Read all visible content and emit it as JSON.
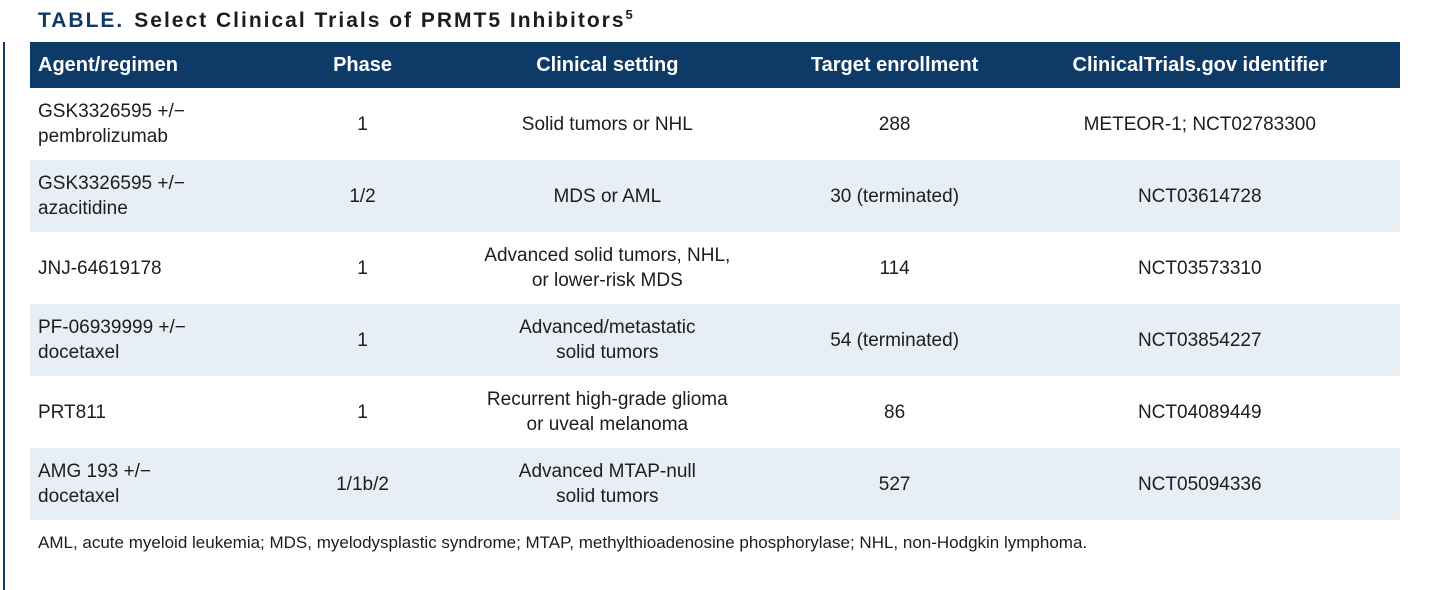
{
  "title": {
    "label": "TABLE.",
    "text": "Select Clinical Trials of PRMT5 Inhibitors",
    "reference": "5"
  },
  "table": {
    "columns": [
      {
        "label": "Agent/regimen"
      },
      {
        "label": "Phase"
      },
      {
        "label": "Clinical setting"
      },
      {
        "label": "Target enrollment"
      },
      {
        "label": "ClinicalTrials.gov identifier"
      }
    ],
    "rows": [
      {
        "agent": [
          "GSK3326595 +/−",
          "pembrolizumab"
        ],
        "phase": "1",
        "setting": [
          "Solid tumors or NHL"
        ],
        "enrollment": "288",
        "identifier": "METEOR-1; NCT02783300"
      },
      {
        "agent": [
          "GSK3326595 +/−",
          "azacitidine"
        ],
        "phase": "1/2",
        "setting": [
          "MDS or AML"
        ],
        "enrollment": "30 (terminated)",
        "identifier": "NCT03614728"
      },
      {
        "agent": [
          "JNJ-64619178"
        ],
        "phase": "1",
        "setting": [
          "Advanced solid tumors, NHL,",
          "or lower-risk MDS"
        ],
        "enrollment": "114",
        "identifier": "NCT03573310"
      },
      {
        "agent": [
          "PF-06939999 +/−",
          "docetaxel"
        ],
        "phase": "1",
        "setting": [
          "Advanced/metastatic",
          "solid tumors"
        ],
        "enrollment": "54 (terminated)",
        "identifier": "NCT03854227"
      },
      {
        "agent": [
          "PRT811"
        ],
        "phase": "1",
        "setting": [
          "Recurrent high-grade glioma",
          "or uveal melanoma"
        ],
        "enrollment": "86",
        "identifier": "NCT04089449"
      },
      {
        "agent": [
          "AMG 193 +/−",
          "docetaxel"
        ],
        "phase": "1/1b/2",
        "setting": [
          "Advanced MTAP-null",
          "solid tumors"
        ],
        "enrollment": "527",
        "identifier": "NCT05094336"
      }
    ]
  },
  "footnote": "AML, acute myeloid leukemia; MDS, myelodysplastic syndrome; MTAP, methylthioadenosine phosphorylase; NHL, non-Hodgkin lymphoma.",
  "colors": {
    "header_bg": "#0e3a67",
    "row_alt_bg": "#e8eef5",
    "title_accent": "#0e3a67",
    "body_text": "#1d1d1b",
    "left_rule": "#16396b"
  }
}
